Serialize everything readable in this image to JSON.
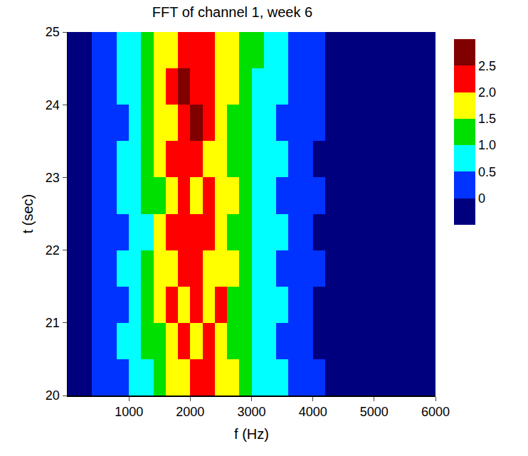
{
  "chart_data": {
    "type": "heatmap",
    "title": "FFT of channel 1, week 6",
    "x_label": "f (Hz)",
    "y_label": "t (sec)",
    "xlim": [
      0,
      6000
    ],
    "xticks": [
      1000,
      2000,
      3000,
      4000,
      5000,
      6000
    ],
    "ylim": [
      20,
      25
    ],
    "yticks": [
      20,
      21,
      22,
      23,
      24,
      25
    ],
    "x": [
      100,
      300,
      500,
      700,
      900,
      1100,
      1300,
      1500,
      1700,
      1900,
      2100,
      2300,
      2500,
      2700,
      2900,
      3100,
      3300,
      3500,
      3700,
      3900,
      4100,
      4300,
      4500,
      4700,
      4900,
      5100,
      5300,
      5500,
      5700,
      5900
    ],
    "y": [
      20.25,
      20.75,
      21.25,
      21.75,
      22.25,
      22.75,
      23.25,
      23.75,
      24.25,
      24.75
    ],
    "z": [
      [
        -0.3,
        -0.2,
        0.1,
        0.3,
        0.4,
        0.6,
        0.9,
        1.3,
        1.6,
        1.9,
        2.3,
        2.1,
        1.7,
        1.5,
        1.1,
        0.9,
        0.6,
        0.5,
        0.3,
        0.2,
        0.0,
        -0.3,
        -0.3,
        -0.3,
        -0.3,
        -0.3,
        -0.3,
        -0.3,
        -0.3,
        -0.3
      ],
      [
        -0.3,
        -0.1,
        0.2,
        0.3,
        0.5,
        0.7,
        1.1,
        1.4,
        1.8,
        2.2,
        1.9,
        2.4,
        1.6,
        1.3,
        1.0,
        0.8,
        0.7,
        0.4,
        0.3,
        0.1,
        -0.1,
        -0.3,
        -0.3,
        -0.3,
        -0.3,
        -0.3,
        -0.3,
        -0.3,
        -0.3,
        -0.3
      ],
      [
        -0.3,
        -0.2,
        0.0,
        0.4,
        0.3,
        0.8,
        1.0,
        1.5,
        2.1,
        1.8,
        2.2,
        1.9,
        2.0,
        1.4,
        1.2,
        0.7,
        0.5,
        0.6,
        0.2,
        0.1,
        -0.1,
        -0.3,
        -0.3,
        -0.3,
        -0.3,
        -0.3,
        -0.3,
        -0.3,
        -0.3,
        -0.3
      ],
      [
        -0.3,
        -0.1,
        0.1,
        0.2,
        0.5,
        0.6,
        1.2,
        1.7,
        1.9,
        2.3,
        2.0,
        1.8,
        1.7,
        1.6,
        1.0,
        0.9,
        0.6,
        0.4,
        0.3,
        0.2,
        0.0,
        -0.3,
        -0.3,
        -0.3,
        -0.3,
        -0.3,
        -0.3,
        -0.3,
        -0.3,
        -0.3
      ],
      [
        -0.3,
        -0.2,
        0.2,
        0.3,
        0.4,
        0.7,
        0.9,
        1.6,
        2.2,
        2.0,
        2.4,
        2.1,
        1.9,
        1.3,
        1.1,
        0.8,
        0.7,
        0.5,
        0.3,
        0.1,
        -0.1,
        -0.3,
        -0.3,
        -0.3,
        -0.3,
        -0.3,
        -0.3,
        -0.3,
        -0.3,
        -0.3
      ],
      [
        -0.3,
        -0.1,
        0.1,
        0.4,
        0.6,
        0.8,
        1.1,
        1.4,
        1.7,
        2.1,
        1.8,
        2.3,
        1.6,
        1.5,
        1.2,
        0.9,
        0.5,
        0.4,
        0.2,
        0.2,
        0.0,
        -0.3,
        -0.3,
        -0.3,
        -0.3,
        -0.3,
        -0.3,
        -0.3,
        -0.3,
        -0.3
      ],
      [
        -0.3,
        -0.2,
        0.0,
        0.3,
        0.5,
        0.6,
        1.3,
        1.5,
        2.0,
        2.4,
        2.2,
        1.9,
        1.8,
        1.4,
        1.0,
        0.8,
        0.6,
        0.5,
        0.3,
        0.1,
        -0.1,
        -0.3,
        -0.3,
        -0.3,
        -0.3,
        -0.3,
        -0.3,
        -0.3,
        -0.3,
        -0.3
      ],
      [
        -0.3,
        -0.1,
        0.2,
        0.2,
        0.4,
        0.7,
        1.0,
        1.6,
        1.8,
        2.1,
        2.5,
        2.0,
        1.7,
        1.3,
        1.1,
        0.9,
        0.7,
        0.4,
        0.3,
        0.2,
        0.0,
        -0.3,
        -0.3,
        -0.3,
        -0.3,
        -0.3,
        -0.3,
        -0.3,
        -0.3,
        -0.3
      ],
      [
        -0.3,
        -0.2,
        0.1,
        0.3,
        0.6,
        0.8,
        1.2,
        1.7,
        2.2,
        2.6,
        2.3,
        2.1,
        1.9,
        1.6,
        1.2,
        0.8,
        0.6,
        0.5,
        0.4,
        0.2,
        0.1,
        -0.3,
        -0.3,
        -0.3,
        -0.3,
        -0.3,
        -0.3,
        -0.3,
        -0.3,
        -0.3
      ],
      [
        -0.3,
        -0.1,
        0.2,
        0.4,
        0.5,
        0.9,
        1.1,
        1.5,
        1.9,
        2.2,
        2.0,
        2.2,
        1.8,
        1.5,
        1.3,
        1.0,
        0.7,
        0.6,
        0.4,
        0.3,
        0.1,
        -0.3,
        -0.3,
        -0.3,
        -0.3,
        -0.3,
        -0.3,
        -0.3,
        -0.3,
        -0.3
      ]
    ],
    "colorbar": {
      "range": [
        -0.5,
        3
      ],
      "ticks": [
        0,
        0.5,
        {
          "value": 1,
          "label": "1.0"
        },
        {
          "value": 1.5,
          "label": "1.5"
        },
        {
          "value": 2,
          "label": "2.0"
        },
        {
          "value": 2.5,
          "label": "2.5"
        }
      ],
      "colors": [
        "#00007f",
        "#0033ff",
        "#00ffff",
        "#00e000",
        "#ffff00",
        "#ff0000",
        "#800000"
      ]
    },
    "grid": false
  }
}
